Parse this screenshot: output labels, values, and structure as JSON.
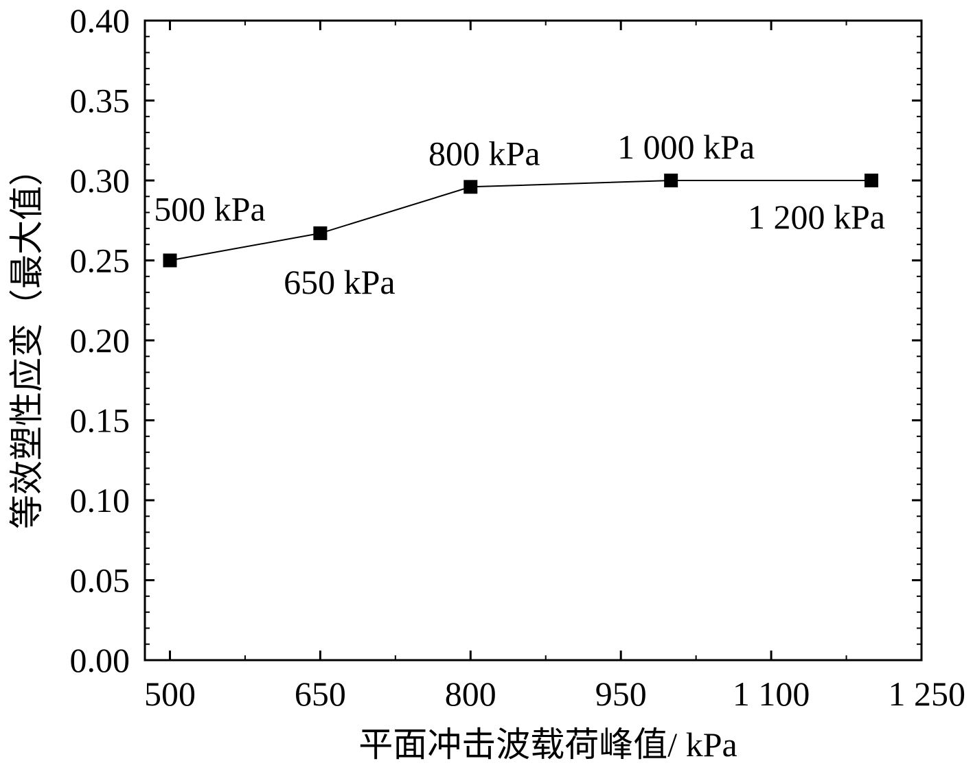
{
  "chart_data": {
    "type": "line",
    "title": "",
    "xlabel": "平面冲击波载荷峰值/ kPa",
    "ylabel": "等效塑性应变（最大值）",
    "xlim": [
      475,
      1250
    ],
    "ylim": [
      0,
      0.4
    ],
    "x_ticks": [
      500,
      650,
      800,
      950,
      1100,
      1250
    ],
    "x_tick_labels": [
      "500",
      "650",
      "800",
      "950",
      "1 100",
      "1 250"
    ],
    "y_ticks": [
      0,
      0.05,
      0.1,
      0.15,
      0.2,
      0.25,
      0.3,
      0.35,
      0.4
    ],
    "y_tick_labels": [
      "0.00",
      "0.05",
      "0.10",
      "0.15",
      "0.20",
      "0.25",
      "0.30",
      "0.35",
      "0.40"
    ],
    "grid": false,
    "marker": "square",
    "line_color": "#000000",
    "series": [
      {
        "x": [
          500,
          650,
          800,
          1000,
          1200
        ],
        "values": [
          0.25,
          0.267,
          0.296,
          0.3,
          0.3
        ],
        "point_labels": [
          "500 kPa",
          "650 kPa",
          "800 kPa",
          "1 000 kPa",
          "1 200 kPa"
        ]
      }
    ]
  }
}
